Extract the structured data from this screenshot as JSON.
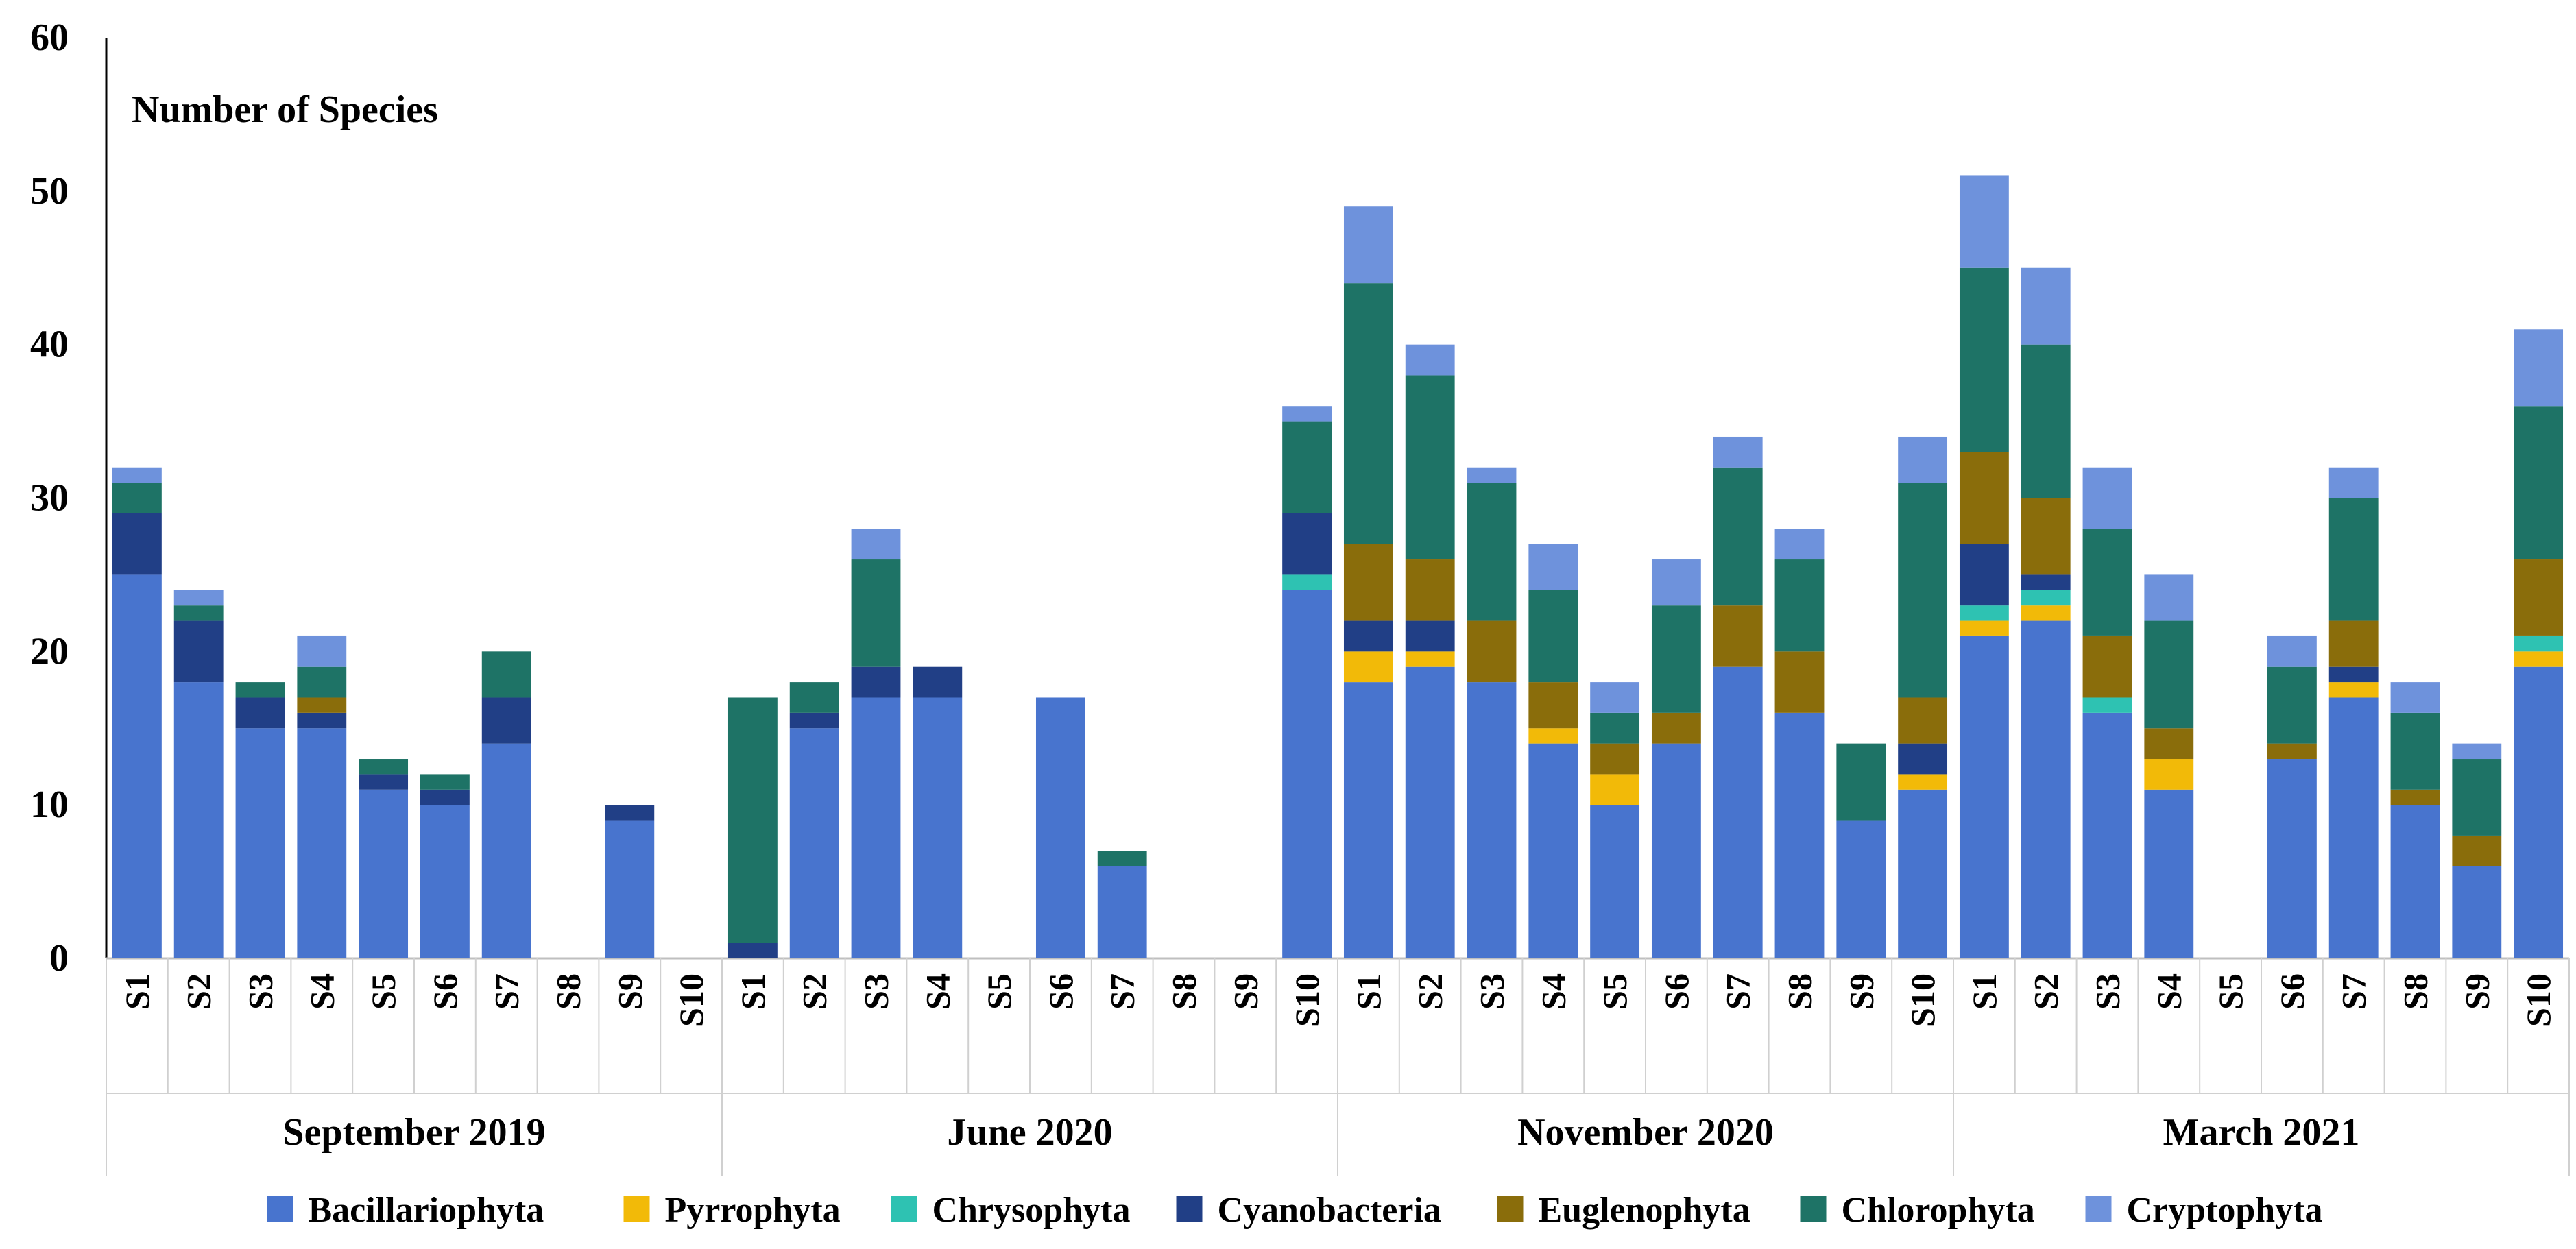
{
  "chart_data": {
    "type": "bar",
    "stacked": true,
    "title": "Number of Species",
    "ylim": [
      0,
      60
    ],
    "yticks": [
      0,
      10,
      20,
      30,
      40,
      50,
      60
    ],
    "grid": false,
    "legend_position": "bottom",
    "sites": [
      "S1",
      "S2",
      "S3",
      "S4",
      "S5",
      "S6",
      "S7",
      "S8",
      "S9",
      "S10"
    ],
    "groups": [
      {
        "label": "September 2019",
        "stacks": [
          [
            25,
            0,
            0,
            4,
            0,
            2,
            1
          ],
          [
            18,
            0,
            0,
            4,
            0,
            1,
            1
          ],
          [
            15,
            0,
            0,
            2,
            0,
            1,
            0
          ],
          [
            15,
            0,
            0,
            1,
            1,
            2,
            2
          ],
          [
            11,
            0,
            0,
            1,
            0,
            1,
            0
          ],
          [
            10,
            0,
            0,
            1,
            0,
            1,
            0
          ],
          [
            14,
            0,
            0,
            3,
            0,
            3,
            0
          ],
          [
            0,
            0,
            0,
            0,
            0,
            0,
            0
          ],
          [
            9,
            0,
            0,
            1,
            0,
            0,
            0
          ],
          [
            0,
            0,
            0,
            0,
            0,
            0,
            0
          ]
        ]
      },
      {
        "label": "June 2020",
        "stacks": [
          [
            0,
            0,
            0,
            1,
            0,
            16,
            0
          ],
          [
            15,
            0,
            0,
            1,
            0,
            2,
            0
          ],
          [
            17,
            0,
            0,
            2,
            0,
            7,
            2
          ],
          [
            17,
            0,
            0,
            2,
            0,
            0,
            0
          ],
          [
            0,
            0,
            0,
            0,
            0,
            0,
            0
          ],
          [
            17,
            0,
            0,
            0,
            0,
            0,
            0
          ],
          [
            6,
            0,
            0,
            0,
            0,
            1,
            0
          ],
          [
            0,
            0,
            0,
            0,
            0,
            0,
            0
          ],
          [
            0,
            0,
            0,
            0,
            0,
            0,
            0
          ],
          [
            24,
            0,
            1,
            4,
            0,
            6,
            1
          ]
        ]
      },
      {
        "label": "November 2020",
        "stacks": [
          [
            18,
            2,
            0,
            2,
            5,
            17,
            5
          ],
          [
            19,
            1,
            0,
            2,
            4,
            12,
            2
          ],
          [
            18,
            0,
            0,
            0,
            4,
            9,
            1
          ],
          [
            14,
            1,
            0,
            0,
            3,
            6,
            3
          ],
          [
            10,
            2,
            0,
            0,
            2,
            2,
            2
          ],
          [
            14,
            0,
            0,
            0,
            2,
            7,
            3
          ],
          [
            19,
            0,
            0,
            0,
            4,
            9,
            2
          ],
          [
            16,
            0,
            0,
            0,
            4,
            6,
            2
          ],
          [
            9,
            0,
            0,
            0,
            0,
            5,
            0
          ],
          [
            11,
            1,
            0,
            2,
            3,
            14,
            3
          ]
        ]
      },
      {
        "label": "March 2021",
        "stacks": [
          [
            21,
            1,
            1,
            4,
            6,
            12,
            6
          ],
          [
            22,
            1,
            1,
            1,
            5,
            10,
            5
          ],
          [
            16,
            0,
            1,
            0,
            4,
            7,
            4
          ],
          [
            11,
            2,
            0,
            0,
            2,
            7,
            3
          ],
          [
            0,
            0,
            0,
            0,
            0,
            0,
            0
          ],
          [
            13,
            0,
            0,
            0,
            1,
            5,
            2
          ],
          [
            17,
            1,
            0,
            1,
            3,
            8,
            2
          ],
          [
            10,
            0,
            0,
            0,
            1,
            5,
            2
          ],
          [
            6,
            0,
            0,
            0,
            2,
            5,
            1
          ],
          [
            19,
            1,
            1,
            0,
            5,
            10,
            5
          ]
        ]
      }
    ],
    "series": [
      {
        "name": "Bacillariophyta",
        "color": "#4874CE"
      },
      {
        "name": "Pyrrophyta",
        "color": "#F2BA08"
      },
      {
        "name": "Chrysophyta",
        "color": "#2EC2B2"
      },
      {
        "name": "Cyanobacteria",
        "color": "#213F86"
      },
      {
        "name": "Euglenophyta",
        "color": "#8A6D0B"
      },
      {
        "name": "Chlorophyta",
        "color": "#1E7366"
      },
      {
        "name": "Cryptophyta",
        "color": "#6E92DC"
      }
    ]
  }
}
